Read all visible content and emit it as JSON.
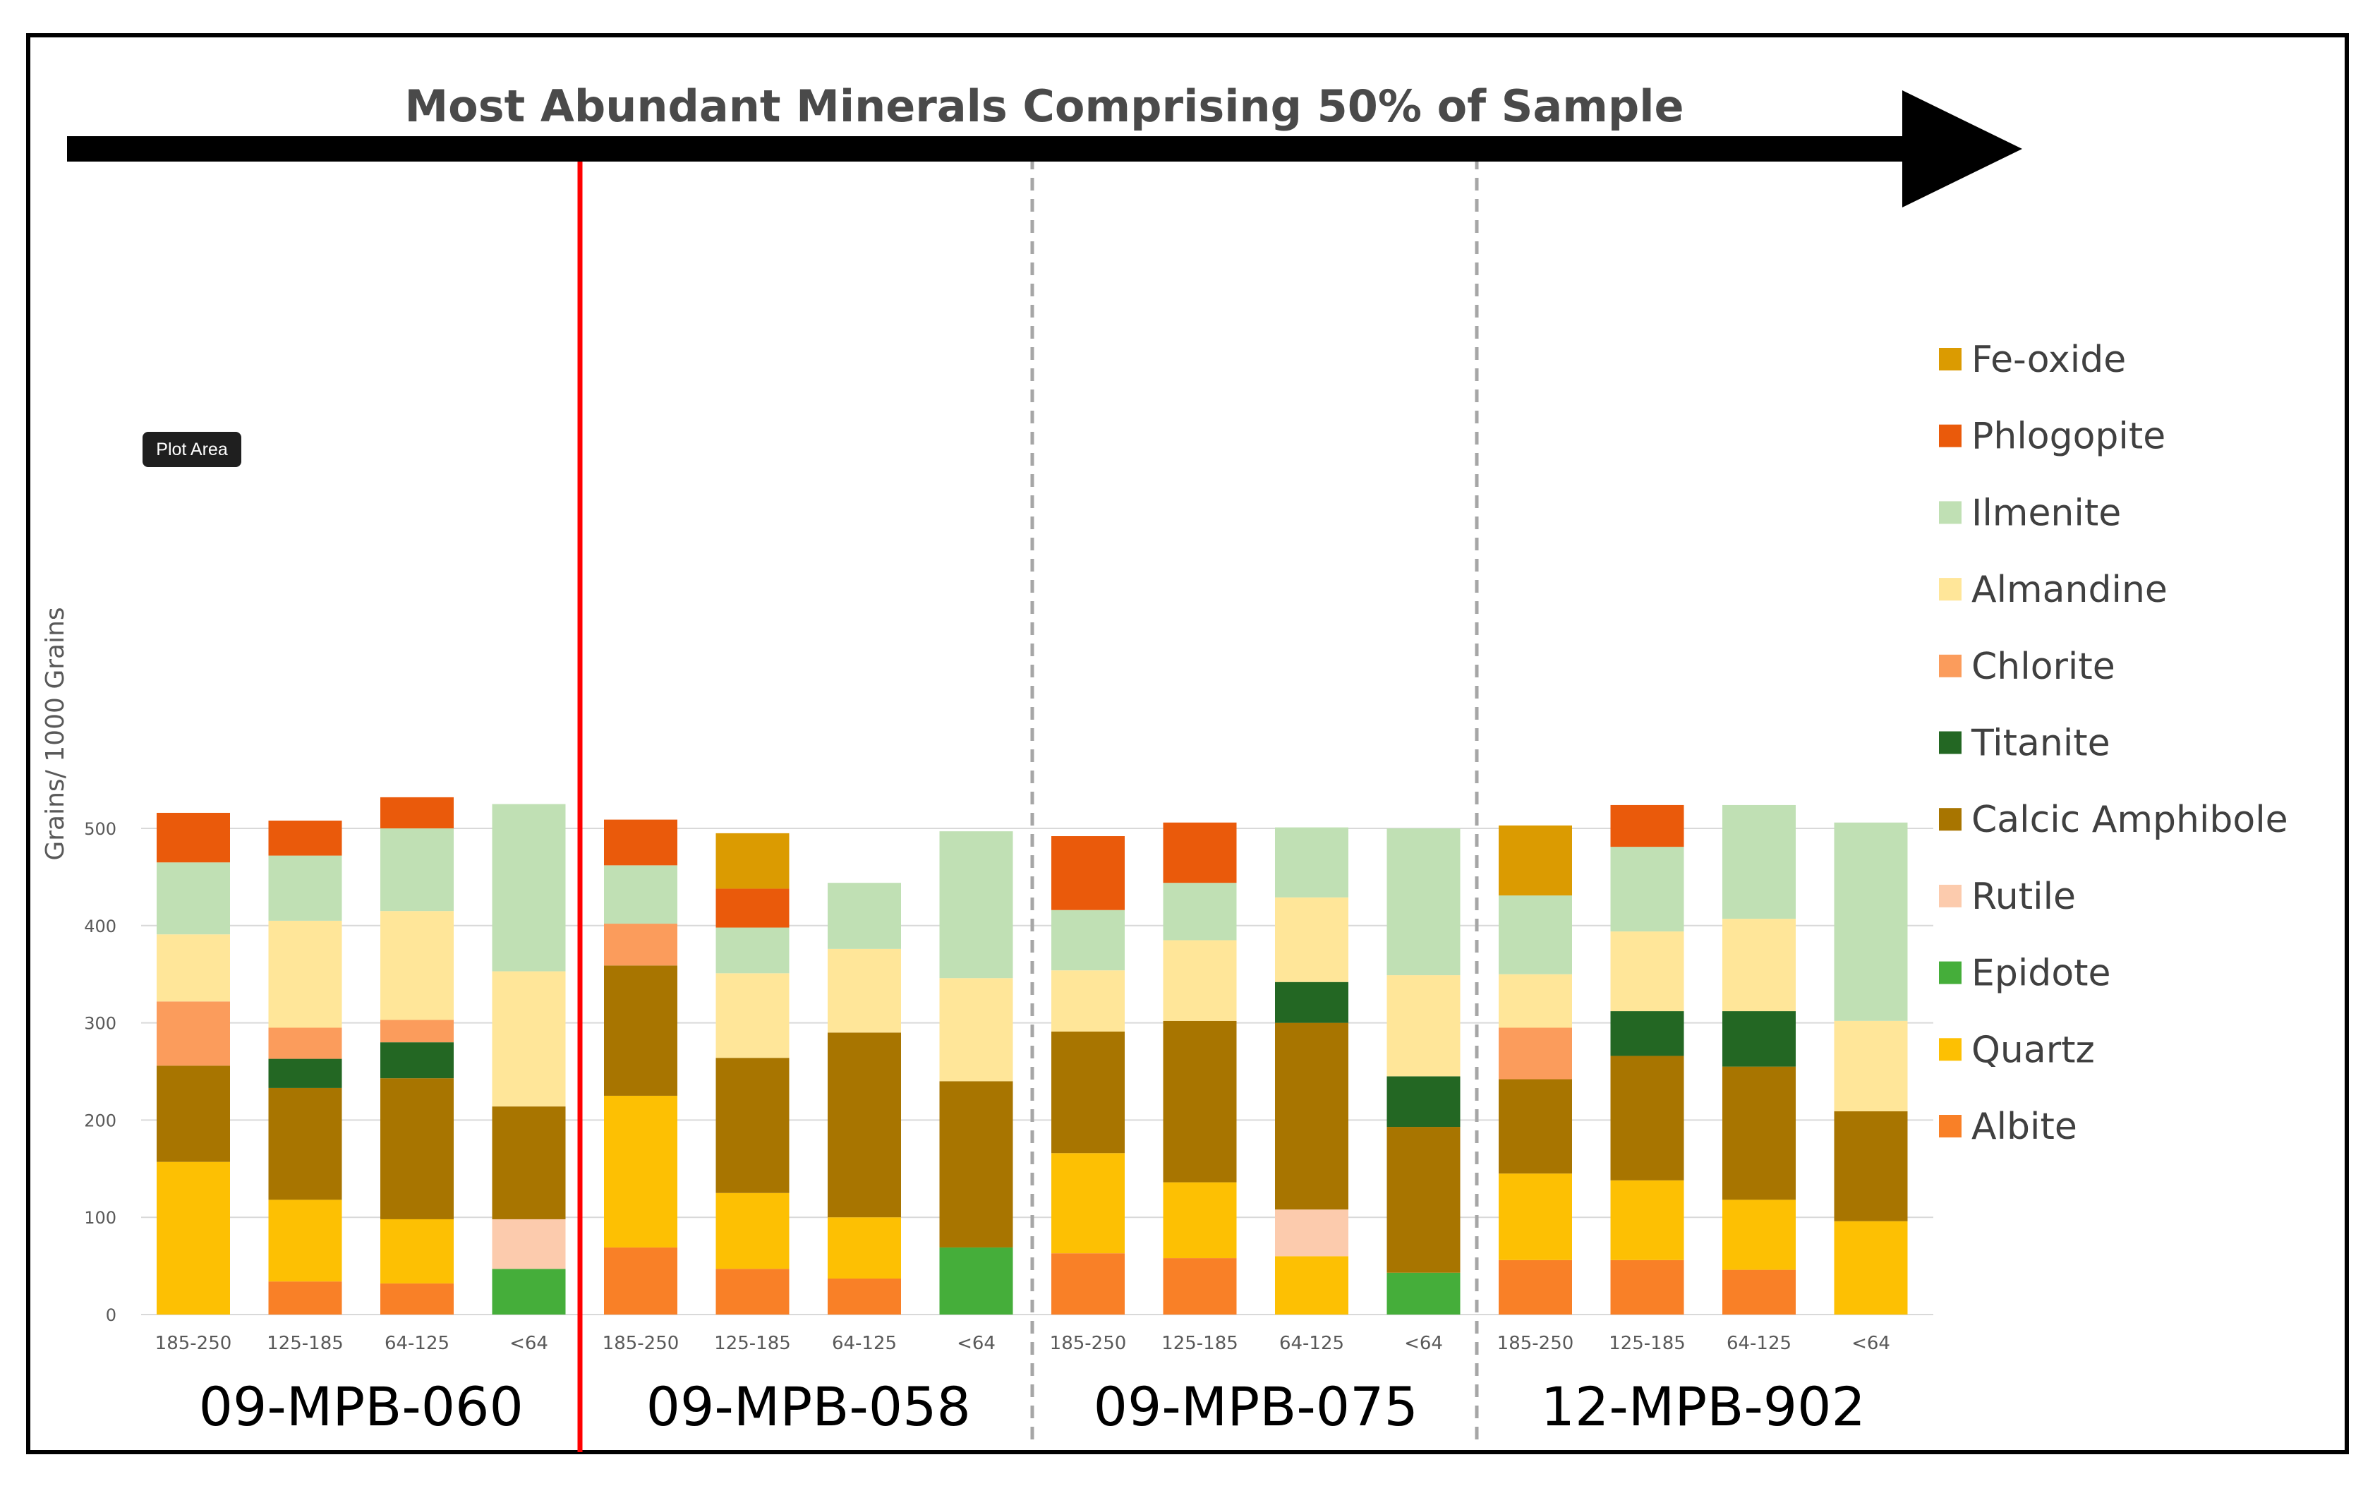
{
  "chart_data": {
    "type": "bar",
    "stacked": true,
    "title": "Most Abundant Minerals Comprising 50% of Sample",
    "ylabel": "Grains/ 1000 Grains",
    "xlabel": "",
    "ylim": [
      0,
      550
    ],
    "yticks": [
      0,
      100,
      200,
      300,
      400,
      500
    ],
    "grid": true,
    "legend_position": "right",
    "tooltip": "Plot Area",
    "categories": [
      "185-250",
      "125-185",
      "64-125",
      "<64",
      "185-250",
      "125-185",
      "64-125",
      "<64",
      "185-250",
      "125-185",
      "64-125",
      "<64",
      "185-250",
      "125-185",
      "64-125",
      "<64"
    ],
    "groups": [
      {
        "name": "09-MPB-060",
        "categories": [
          0,
          1,
          2,
          3
        ]
      },
      {
        "name": "09-MPB-058",
        "categories": [
          4,
          5,
          6,
          7
        ]
      },
      {
        "name": "09-MPB-075",
        "categories": [
          8,
          9,
          10,
          11
        ]
      },
      {
        "name": "12-MPB-902",
        "categories": [
          12,
          13,
          14,
          15
        ]
      }
    ],
    "series": [
      {
        "name": "Albite",
        "color": "#F98027",
        "values": [
          0,
          34,
          32,
          0,
          69,
          47,
          37,
          0,
          63,
          58,
          0,
          0,
          56,
          56,
          46,
          0
        ]
      },
      {
        "name": "Quartz",
        "color": "#FDC003",
        "values": [
          157,
          84,
          66,
          0,
          156,
          78,
          63,
          0,
          103,
          78,
          60,
          0,
          89,
          82,
          72,
          96
        ]
      },
      {
        "name": "Epidote",
        "color": "#45AE3A",
        "values": [
          0,
          0,
          0,
          47,
          0,
          0,
          0,
          69,
          0,
          0,
          0,
          43,
          0,
          0,
          0,
          0
        ]
      },
      {
        "name": "Rutile",
        "color": "#FCCBAD",
        "values": [
          0,
          0,
          0,
          51,
          0,
          0,
          0,
          0,
          0,
          0,
          48,
          0,
          0,
          0,
          0,
          0
        ]
      },
      {
        "name": "Calcic Amphibole",
        "color": "#A87500",
        "values": [
          99,
          115,
          145,
          116,
          134,
          139,
          190,
          171,
          125,
          166,
          192,
          150,
          97,
          128,
          137,
          113
        ]
      },
      {
        "name": "Titanite",
        "color": "#236723",
        "values": [
          0,
          30,
          37,
          0,
          0,
          0,
          0,
          0,
          0,
          0,
          42,
          52,
          0,
          46,
          57,
          0
        ]
      },
      {
        "name": "Chlorite",
        "color": "#FB9C5C",
        "values": [
          66,
          32,
          23,
          0,
          43,
          0,
          0,
          0,
          0,
          0,
          0,
          0,
          53,
          0,
          0,
          0
        ]
      },
      {
        "name": "Almandine",
        "color": "#FFE699",
        "values": [
          69,
          110,
          112,
          139,
          0,
          87,
          86,
          106,
          63,
          83,
          87,
          104,
          55,
          82,
          95,
          93
        ]
      },
      {
        "name": "Ilmenite",
        "color": "#C0E0B4",
        "values": [
          74,
          67,
          85,
          172,
          60,
          47,
          68,
          151,
          62,
          59,
          72,
          151,
          81,
          87,
          117,
          204
        ]
      },
      {
        "name": "Phlogopite",
        "color": "#EA5A0B",
        "values": [
          51,
          36,
          32,
          0,
          47,
          40,
          0,
          0,
          76,
          62,
          0,
          0,
          0,
          43,
          0,
          0
        ]
      },
      {
        "name": "Fe-oxide",
        "color": "#DB9B01",
        "values": [
          0,
          0,
          0,
          0,
          0,
          57,
          0,
          0,
          0,
          0,
          0,
          0,
          72,
          0,
          0,
          0
        ]
      }
    ]
  }
}
